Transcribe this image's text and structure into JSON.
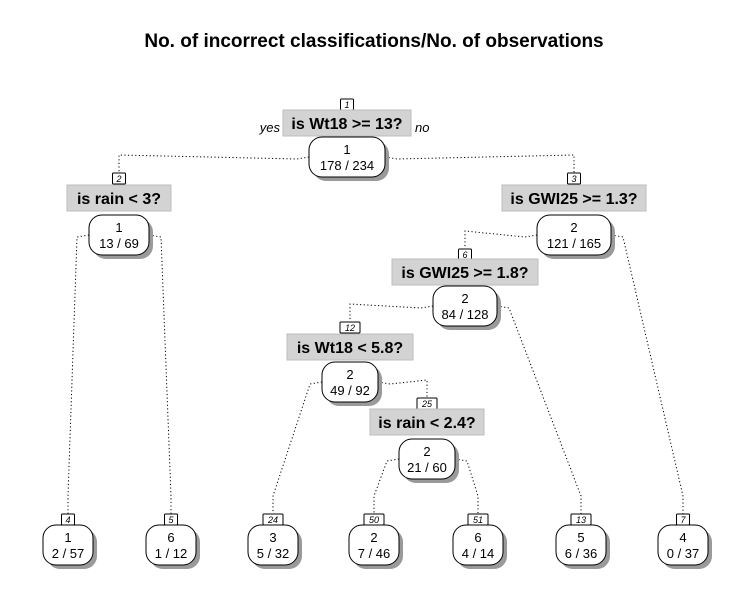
{
  "title": "No. of incorrect classifications/No. of observations",
  "root_branch_labels": {
    "yes": "yes",
    "no": "no"
  },
  "nodes": [
    {
      "id": "1",
      "split": "is Wt18 >= 13?",
      "class": "1",
      "stats": "178 / 234"
    },
    {
      "id": "2",
      "split": "is rain < 3?",
      "class": "1",
      "stats": "13 / 69"
    },
    {
      "id": "3",
      "split": "is GWI25 >= 1.3?",
      "class": "2",
      "stats": "121 / 165"
    },
    {
      "id": "6",
      "split": "is GWI25 >= 1.8?",
      "class": "2",
      "stats": "84 / 128"
    },
    {
      "id": "12",
      "split": "is Wt18 < 5.8?",
      "class": "2",
      "stats": "49 / 92"
    },
    {
      "id": "25",
      "split": "is rain < 2.4?",
      "class": "2",
      "stats": "21 / 60"
    },
    {
      "id": "4",
      "split": "",
      "class": "1",
      "stats": "2 / 57"
    },
    {
      "id": "5",
      "split": "",
      "class": "6",
      "stats": "1 / 12"
    },
    {
      "id": "24",
      "split": "",
      "class": "3",
      "stats": "5 / 32"
    },
    {
      "id": "50",
      "split": "",
      "class": "2",
      "stats": "7 / 46"
    },
    {
      "id": "51",
      "split": "",
      "class": "6",
      "stats": "4 / 14"
    },
    {
      "id": "13",
      "split": "",
      "class": "5",
      "stats": "6 / 36"
    },
    {
      "id": "7",
      "split": "",
      "class": "4",
      "stats": "0 / 37"
    }
  ],
  "edges": [
    {
      "from": "1",
      "to": "2"
    },
    {
      "from": "1",
      "to": "3"
    },
    {
      "from": "2",
      "to": "4"
    },
    {
      "from": "2",
      "to": "5"
    },
    {
      "from": "3",
      "to": "6"
    },
    {
      "from": "3",
      "to": "7"
    },
    {
      "from": "6",
      "to": "12"
    },
    {
      "from": "6",
      "to": "13"
    },
    {
      "from": "12",
      "to": "24"
    },
    {
      "from": "12",
      "to": "25"
    },
    {
      "from": "25",
      "to": "50"
    },
    {
      "from": "25",
      "to": "51"
    }
  ]
}
